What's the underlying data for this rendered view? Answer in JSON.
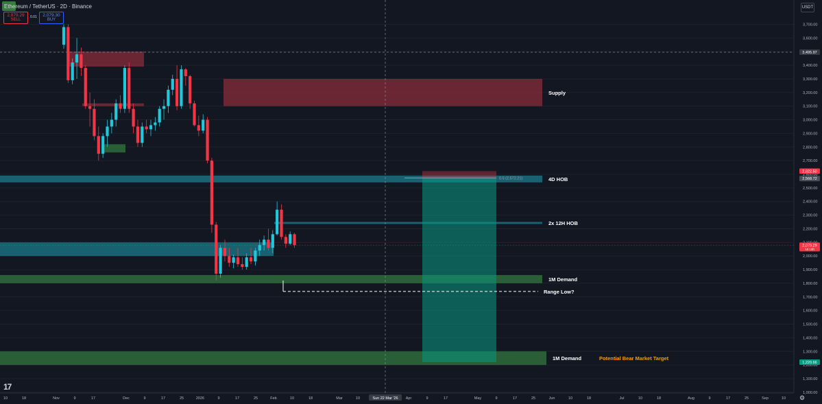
{
  "header": {
    "symbol_text": "Ethereum / TetherUS · 2D · Binance",
    "sell_label": "SELL",
    "sell_price": "2,079.29",
    "buy_label": "BUY",
    "buy_price": "2,079.30",
    "spread": "0.01",
    "logo_color": "#43a047"
  },
  "axis_currency": "USDT",
  "settings_icon": "gear-icon",
  "brand_icon": "tradingview-logo-icon",
  "colors": {
    "background": "#131722",
    "up": "#26c6da",
    "down": "#f23645",
    "supply": "#7a2a36",
    "hob": "#1b6f7e",
    "demand": "#2e6b3a",
    "target_text": "#ff9800",
    "grid": "#1e222d"
  },
  "chart_data": {
    "type": "candlestick",
    "y_range": [
      1000,
      3800
    ],
    "y_ticks": [
      "3,700.00",
      "3,600.00",
      "3,500.00",
      "3,400.00",
      "3,300.00",
      "3,200.00",
      "3,100.00",
      "3,000.00",
      "2,900.00",
      "2,800.00",
      "2,700.00",
      "2,600.00",
      "2,500.00",
      "2,400.00",
      "2,300.00",
      "2,200.00",
      "2,100.00",
      "2,000.00",
      "1,900.00",
      "1,800.00",
      "1,700.00",
      "1,600.00",
      "1,500.00",
      "1,400.00",
      "1,300.00",
      "1,200.00",
      "1,100.00",
      "1,000.00"
    ],
    "x_ticks": [
      "10",
      "18",
      "Nov",
      "9",
      "17",
      "Dec",
      "9",
      "17",
      "25",
      "2026",
      "9",
      "17",
      "25",
      "Feb",
      "10",
      "18",
      "Mar",
      "10",
      "Apr",
      "9",
      "17",
      "May",
      "9",
      "17",
      "25",
      "Jun",
      "10",
      "18",
      "Jul",
      "10",
      "18",
      "Aug",
      "9",
      "17",
      "25",
      "Sep",
      "10"
    ],
    "crosshair_date": "Sun 22 Mar '26",
    "price_badges": [
      {
        "label": "3,495.97",
        "value": 3495.97,
        "style": "crosshair"
      },
      {
        "label": "2,622.50",
        "value": 2622.5,
        "style": "red"
      },
      {
        "label": "2,568.72",
        "value": 2568.72,
        "style": "grey"
      },
      {
        "label": "2,079.29",
        "sub": "1d 10h",
        "value": 2079.29,
        "style": "red"
      },
      {
        "label": "1,220.66",
        "value": 1220.66,
        "style": "green"
      }
    ],
    "current_price": 2079.29,
    "candles": [
      [
        3550,
        3700,
        3520,
        3680
      ],
      [
        3680,
        3700,
        3270,
        3290
      ],
      [
        3290,
        3450,
        3260,
        3420
      ],
      [
        3420,
        3600,
        3300,
        3480
      ],
      [
        3480,
        3530,
        3320,
        3380
      ],
      [
        3380,
        3400,
        3080,
        3100
      ],
      [
        3100,
        3200,
        2950,
        3080
      ],
      [
        3080,
        3150,
        2850,
        2880
      ],
      [
        2880,
        2950,
        2700,
        2750
      ],
      [
        2750,
        2900,
        2720,
        2880
      ],
      [
        2880,
        3000,
        2800,
        2950
      ],
      [
        2950,
        3050,
        2900,
        3000
      ],
      [
        3000,
        3150,
        2950,
        3120
      ],
      [
        3120,
        3180,
        3050,
        3080
      ],
      [
        3080,
        3400,
        3050,
        3380
      ],
      [
        3380,
        3420,
        3050,
        3080
      ],
      [
        3080,
        3120,
        2900,
        2950
      ],
      [
        2950,
        3000,
        2800,
        2830
      ],
      [
        2830,
        2980,
        2800,
        2950
      ],
      [
        2950,
        3000,
        2900,
        2930
      ],
      [
        2930,
        3000,
        2880,
        2960
      ],
      [
        2960,
        3020,
        2920,
        2980
      ],
      [
        2980,
        3100,
        2950,
        3080
      ],
      [
        3080,
        3150,
        3000,
        3100
      ],
      [
        3100,
        3250,
        3050,
        3220
      ],
      [
        3220,
        3330,
        3180,
        3300
      ],
      [
        3300,
        3400,
        3070,
        3100
      ],
      [
        3100,
        3400,
        3080,
        3370
      ],
      [
        3370,
        3380,
        3250,
        3320
      ],
      [
        3320,
        3330,
        3080,
        3120
      ],
      [
        3120,
        3140,
        2950,
        2960
      ],
      [
        2960,
        3030,
        2880,
        2920
      ],
      [
        2920,
        3040,
        2900,
        3000
      ],
      [
        3000,
        3020,
        2680,
        2700
      ],
      [
        2700,
        2720,
        2170,
        2230
      ],
      [
        2230,
        2250,
        1820,
        1870
      ],
      [
        1870,
        2080,
        1840,
        2060
      ],
      [
        2060,
        2120,
        1960,
        2000
      ],
      [
        2000,
        2060,
        1920,
        1950
      ],
      [
        1950,
        2010,
        1910,
        1990
      ],
      [
        1990,
        2060,
        1920,
        1940
      ],
      [
        1940,
        1990,
        1900,
        1920
      ],
      [
        1920,
        2020,
        1900,
        1990
      ],
      [
        1990,
        2060,
        1940,
        1960
      ],
      [
        1960,
        2060,
        1930,
        2040
      ],
      [
        2040,
        2120,
        2000,
        2080
      ],
      [
        2080,
        2150,
        2040,
        2120
      ],
      [
        2120,
        2200,
        2040,
        2060
      ],
      [
        2060,
        2190,
        2020,
        2160
      ],
      [
        2160,
        2400,
        2150,
        2340
      ],
      [
        2340,
        2380,
        2120,
        2140
      ],
      [
        2140,
        2160,
        2060,
        2090
      ],
      [
        2090,
        2180,
        2080,
        2160
      ],
      [
        2160,
        2170,
        2060,
        2079.29
      ]
    ],
    "zones": [
      {
        "label": "Supply",
        "from": 3100,
        "to": 3300,
        "color": "#7a2a36"
      },
      {
        "label": "",
        "from": 3390,
        "to": 3500,
        "color": "#7a2a36"
      },
      {
        "label": "",
        "from": 3100,
        "to": 3120,
        "color": "#7a2a36"
      },
      {
        "label": "4D HOB",
        "from": 2540,
        "to": 2590,
        "color": "#1b6f7e"
      },
      {
        "label": "2x 12H HOB",
        "from": 2235,
        "to": 2250,
        "color": "#1b6f7e"
      },
      {
        "label": "",
        "from": 2000,
        "to": 2100,
        "color": "#1b6f7e"
      },
      {
        "label": "1M Demand",
        "from": 1800,
        "to": 1860,
        "color": "#2e6b3a"
      },
      {
        "label": "",
        "from": 2760,
        "to": 2820,
        "color": "#2e6b3a"
      },
      {
        "label": "1M Demand",
        "from": 1200,
        "to": 1300,
        "color": "#2e6b3a"
      }
    ],
    "range_low": {
      "label": "Range Low?",
      "value": 1740
    },
    "hob_midline": {
      "label": "0.5 (2,572.21)",
      "value": 2572.21
    },
    "position": {
      "entry": 2568.72,
      "stop": 2622.5,
      "target": 1220.66
    },
    "annotation": "Potential Bear Market Target"
  }
}
